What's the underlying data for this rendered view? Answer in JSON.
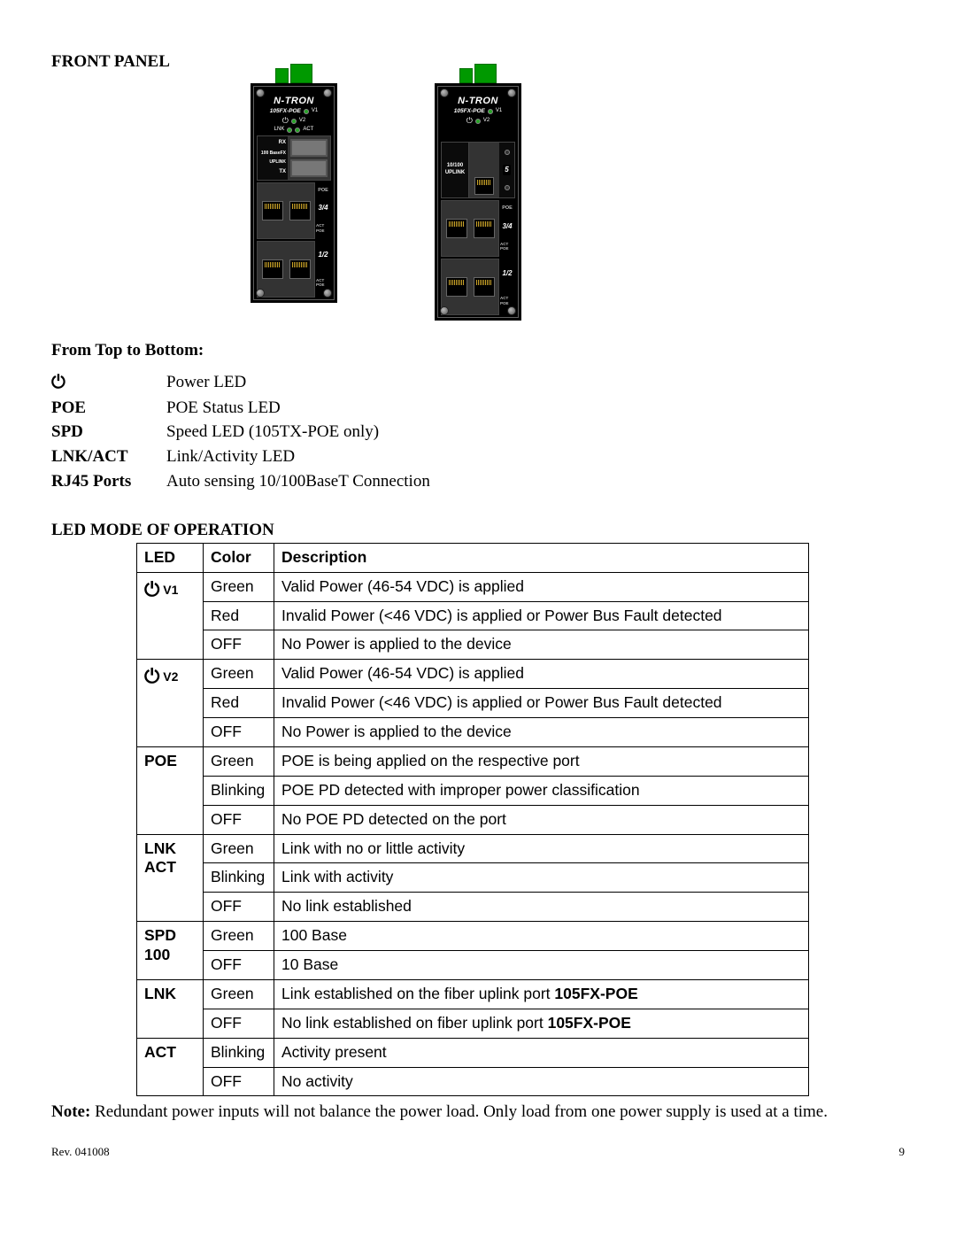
{
  "heading_front_panel": "FRONT PANEL",
  "heading_from_top": "From Top to Bottom:",
  "heading_led_mode": "LED MODE OF OPERATION",
  "device": {
    "brand": "N-TRON",
    "model": "105FX-POE",
    "v1": "V1",
    "v2": "V2",
    "lnk": "LNK",
    "act": "ACT",
    "rx": "RX",
    "fx_label": "100 BaseFX",
    "uplink": "UPLINK",
    "tx": "TX",
    "tx_label_10_100": "10/100",
    "port5": "5",
    "poe_tag": "POE",
    "port34": "3/4",
    "port12": "1/2",
    "act_poe": "ACT POE"
  },
  "colors": {
    "led_green": "#28a428",
    "led_off": "#3c3c3c",
    "terminal_green": "#009900",
    "body_black": "#000000"
  },
  "defs": [
    {
      "term_is_icon": true,
      "term": "⏻",
      "desc": "Power LED"
    },
    {
      "term_is_icon": false,
      "term": "POE",
      "desc": "POE Status LED"
    },
    {
      "term_is_icon": false,
      "term": "SPD",
      "desc": "Speed LED (105TX-POE only)"
    },
    {
      "term_is_icon": false,
      "term": "LNK/ACT",
      "desc": "Link/Activity LED"
    },
    {
      "term_is_icon": false,
      "term": "RJ45 Ports",
      "desc": "Auto sensing 10/100BaseT Connection"
    }
  ],
  "led_table": {
    "headers": [
      "LED",
      "Color",
      "Description"
    ],
    "rows": [
      {
        "led": "⏻",
        "led_sub": "V1",
        "led_is_power": true,
        "rowspan": 3,
        "color": "Green",
        "desc": "Valid Power (46-54 VDC) is applied",
        "bold_suffix": ""
      },
      {
        "led": "",
        "rowspan": 0,
        "color": "Red",
        "desc": "Invalid Power (<46 VDC) is applied or Power Bus Fault detected",
        "bold_suffix": ""
      },
      {
        "led": "",
        "rowspan": 0,
        "color": "OFF",
        "desc": "No Power is applied to the device",
        "bold_suffix": ""
      },
      {
        "led": "⏻",
        "led_sub": "V2",
        "led_is_power": true,
        "rowspan": 3,
        "color": "Green",
        "desc": "Valid Power (46-54 VDC) is applied",
        "bold_suffix": ""
      },
      {
        "led": "",
        "rowspan": 0,
        "color": "Red",
        "desc": "Invalid Power (<46 VDC) is applied or Power Bus Fault detected",
        "bold_suffix": ""
      },
      {
        "led": "",
        "rowspan": 0,
        "color": "OFF",
        "desc": "No Power is applied to the device",
        "bold_suffix": ""
      },
      {
        "led": "POE",
        "led_is_power": false,
        "rowspan": 3,
        "color": "Green",
        "desc": "POE is being applied on the respective port",
        "bold_suffix": ""
      },
      {
        "led": "",
        "rowspan": 0,
        "color": "Blinking",
        "desc": "POE PD detected with improper power classification",
        "bold_suffix": ""
      },
      {
        "led": "",
        "rowspan": 0,
        "color": "OFF",
        "desc": "No POE PD detected on the port",
        "bold_suffix": ""
      },
      {
        "led": "LNK ACT",
        "led_is_power": false,
        "rowspan": 3,
        "color": "Green",
        "desc": "Link with no or little activity",
        "bold_suffix": ""
      },
      {
        "led": "",
        "rowspan": 0,
        "color": "Blinking",
        "desc": "Link with activity",
        "bold_suffix": ""
      },
      {
        "led": "",
        "rowspan": 0,
        "color": "OFF",
        "desc": "No link established",
        "bold_suffix": ""
      },
      {
        "led": "SPD 100",
        "led_is_power": false,
        "rowspan": 2,
        "color": "Green",
        "desc": "100 Base",
        "bold_suffix": ""
      },
      {
        "led": "",
        "rowspan": 0,
        "color": "OFF",
        "desc": "10 Base",
        "bold_suffix": ""
      },
      {
        "led": "LNK",
        "led_is_power": false,
        "rowspan": 2,
        "color": "Green",
        "desc": "Link established on the fiber uplink port ",
        "bold_suffix": "105FX-POE"
      },
      {
        "led": "",
        "rowspan": 0,
        "color": "OFF",
        "desc": "No link established on fiber uplink port ",
        "bold_suffix": "105FX-POE"
      },
      {
        "led": "ACT",
        "led_is_power": false,
        "rowspan": 2,
        "color": "Blinking",
        "desc": "Activity present",
        "bold_suffix": ""
      },
      {
        "led": "",
        "rowspan": 0,
        "color": "OFF",
        "desc": "No activity",
        "bold_suffix": ""
      }
    ]
  },
  "note_label": "Note:",
  "note_text": "  Redundant power inputs will not balance the power load.  Only load from one power supply is used at a time.",
  "footer_rev": "Rev. 041008",
  "footer_page": "9"
}
